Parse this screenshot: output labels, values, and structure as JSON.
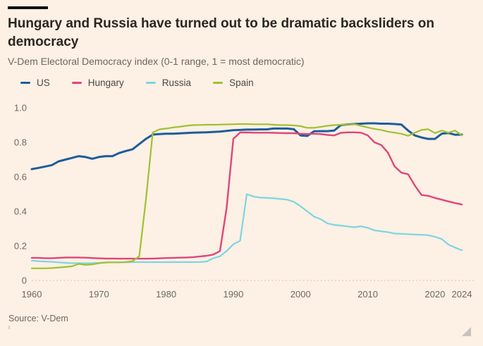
{
  "header": {
    "title": "Hungary and Russia have turned out to be dramatic backsliders on democracy",
    "subtitle": "V-Dem Electoral Democracy index (0-1 range, 1 = most democratic)"
  },
  "footer": {
    "source": "Source: V-Dem"
  },
  "colors": {
    "background": "#fdf0e4",
    "title_text": "#2b2620",
    "muted_text": "#6e665e",
    "axis_text": "#6f6860",
    "baseline_dots": "#e7d4c2",
    "us_blue": "#1c5d9c",
    "hungary_pink": "#e0457b",
    "russia_cyan": "#7dd5e3",
    "spain_green": "#9fc131"
  },
  "chart_data": {
    "type": "line",
    "title": "Hungary and Russia have turned out to be dramatic backsliders on democracy",
    "subtitle": "V-Dem Electoral Democracy index (0-1 range, 1 = most democratic)",
    "xlabel": "",
    "ylabel": "",
    "xlim": [
      1960,
      2024
    ],
    "ylim": [
      0,
      1.0
    ],
    "grid": false,
    "legend_position": "top",
    "yticks": [
      {
        "v": 0,
        "label": "0"
      },
      {
        "v": 0.2,
        "label": "0.2"
      },
      {
        "v": 0.4,
        "label": "0.4"
      },
      {
        "v": 0.6,
        "label": "0.6"
      },
      {
        "v": 0.8,
        "label": "0.8"
      },
      {
        "v": 1.0,
        "label": "1.0"
      }
    ],
    "xticks": [
      {
        "v": 1960,
        "label": "1960"
      },
      {
        "v": 1970,
        "label": "1970"
      },
      {
        "v": 1980,
        "label": "1980"
      },
      {
        "v": 1990,
        "label": "1990"
      },
      {
        "v": 2000,
        "label": "2000"
      },
      {
        "v": 2010,
        "label": "2010"
      },
      {
        "v": 2020,
        "label": "2020"
      },
      {
        "v": 2024,
        "label": "2024"
      }
    ],
    "x": [
      1960,
      1961,
      1962,
      1963,
      1964,
      1965,
      1966,
      1967,
      1968,
      1969,
      1970,
      1971,
      1972,
      1973,
      1974,
      1975,
      1976,
      1977,
      1978,
      1979,
      1980,
      1981,
      1982,
      1983,
      1984,
      1985,
      1986,
      1987,
      1988,
      1989,
      1990,
      1991,
      1992,
      1993,
      1994,
      1995,
      1996,
      1997,
      1998,
      1999,
      2000,
      2001,
      2002,
      2003,
      2004,
      2005,
      2006,
      2007,
      2008,
      2009,
      2010,
      2011,
      2012,
      2013,
      2014,
      2015,
      2016,
      2017,
      2018,
      2019,
      2020,
      2021,
      2022,
      2023,
      2024
    ],
    "series": [
      {
        "name": "US",
        "color": "#1c5d9c",
        "width": 3,
        "values": [
          0.645,
          0.652,
          0.66,
          0.668,
          0.69,
          0.7,
          0.71,
          0.72,
          0.715,
          0.705,
          0.715,
          0.72,
          0.72,
          0.738,
          0.75,
          0.76,
          0.79,
          0.82,
          0.845,
          0.848,
          0.85,
          0.85,
          0.852,
          0.854,
          0.856,
          0.857,
          0.858,
          0.86,
          0.862,
          0.866,
          0.87,
          0.872,
          0.874,
          0.874,
          0.875,
          0.875,
          0.88,
          0.88,
          0.88,
          0.876,
          0.84,
          0.837,
          0.864,
          0.865,
          0.865,
          0.868,
          0.9,
          0.904,
          0.906,
          0.908,
          0.91,
          0.91,
          0.908,
          0.908,
          0.906,
          0.903,
          0.868,
          0.84,
          0.828,
          0.82,
          0.82,
          0.85,
          0.854,
          0.844,
          0.845
        ]
      },
      {
        "name": "Hungary",
        "color": "#e0457b",
        "width": 2.4,
        "values": [
          0.131,
          0.131,
          0.129,
          0.129,
          0.131,
          0.133,
          0.133,
          0.133,
          0.132,
          0.13,
          0.128,
          0.127,
          0.127,
          0.126,
          0.126,
          0.126,
          0.126,
          0.126,
          0.127,
          0.128,
          0.13,
          0.131,
          0.132,
          0.133,
          0.135,
          0.139,
          0.143,
          0.15,
          0.17,
          0.42,
          0.82,
          0.857,
          0.857,
          0.856,
          0.856,
          0.856,
          0.855,
          0.854,
          0.853,
          0.853,
          0.85,
          0.848,
          0.85,
          0.848,
          0.843,
          0.84,
          0.855,
          0.858,
          0.858,
          0.856,
          0.84,
          0.8,
          0.785,
          0.74,
          0.66,
          0.625,
          0.615,
          0.55,
          0.495,
          0.49,
          0.478,
          0.468,
          0.458,
          0.448,
          0.44
        ]
      },
      {
        "name": "Russia",
        "color": "#7dd5e3",
        "width": 2.2,
        "values": [
          0.115,
          0.112,
          0.11,
          0.108,
          0.105,
          0.102,
          0.1,
          0.1,
          0.1,
          0.1,
          0.102,
          0.104,
          0.105,
          0.105,
          0.105,
          0.106,
          0.106,
          0.106,
          0.106,
          0.106,
          0.106,
          0.106,
          0.106,
          0.106,
          0.106,
          0.107,
          0.11,
          0.128,
          0.14,
          0.17,
          0.21,
          0.23,
          0.5,
          0.486,
          0.48,
          0.478,
          0.476,
          0.472,
          0.468,
          0.456,
          0.43,
          0.4,
          0.37,
          0.355,
          0.33,
          0.322,
          0.318,
          0.313,
          0.308,
          0.314,
          0.305,
          0.29,
          0.285,
          0.28,
          0.272,
          0.27,
          0.268,
          0.266,
          0.265,
          0.262,
          0.253,
          0.24,
          0.208,
          0.19,
          0.175
        ]
      },
      {
        "name": "Spain",
        "color": "#9fc131",
        "width": 2.2,
        "values": [
          0.07,
          0.07,
          0.07,
          0.072,
          0.075,
          0.078,
          0.082,
          0.096,
          0.09,
          0.093,
          0.1,
          0.104,
          0.105,
          0.105,
          0.107,
          0.112,
          0.14,
          0.47,
          0.857,
          0.875,
          0.88,
          0.886,
          0.89,
          0.896,
          0.9,
          0.901,
          0.902,
          0.902,
          0.903,
          0.904,
          0.905,
          0.906,
          0.906,
          0.905,
          0.905,
          0.905,
          0.902,
          0.9,
          0.9,
          0.898,
          0.894,
          0.884,
          0.884,
          0.89,
          0.896,
          0.9,
          0.902,
          0.904,
          0.905,
          0.896,
          0.886,
          0.878,
          0.872,
          0.862,
          0.856,
          0.85,
          0.838,
          0.856,
          0.872,
          0.876,
          0.854,
          0.868,
          0.856,
          0.868,
          0.84
        ]
      }
    ]
  }
}
